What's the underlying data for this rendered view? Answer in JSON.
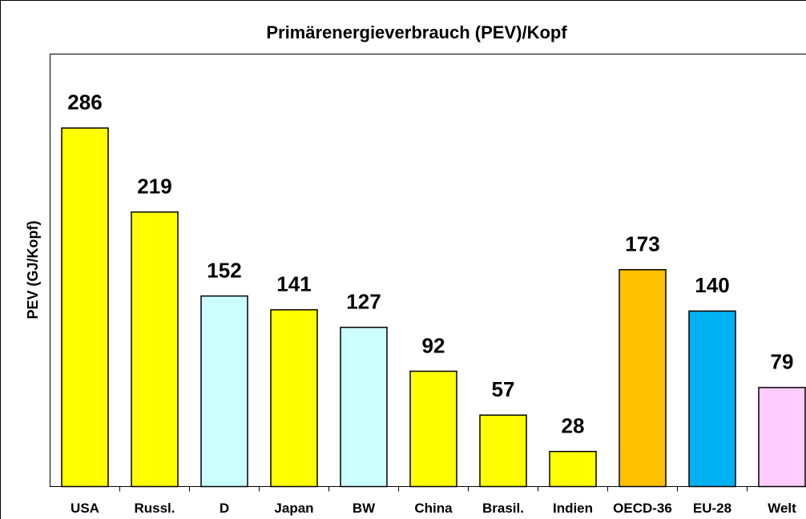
{
  "chart_data": {
    "type": "bar",
    "title": "Primärenergieverbrauch (PEV)/Kopf",
    "y_label": "PEV (GJ/Kopf)",
    "categories": [
      "USA",
      "Russl.",
      "D",
      "Japan",
      "BW",
      "China",
      "Brasil.",
      "Indien",
      "OECD-36",
      "EU-28",
      "Welt"
    ],
    "values": [
      286,
      219,
      152,
      141,
      127,
      92,
      57,
      28,
      173,
      140,
      79
    ],
    "colors": [
      "#ffff00",
      "#ffff00",
      "#ccffff",
      "#ffff00",
      "#ccffff",
      "#ffff00",
      "#ffff00",
      "#ffff00",
      "#ffc000",
      "#00b0f0",
      "#ffccff"
    ],
    "ylim": [
      0,
      345
    ]
  }
}
